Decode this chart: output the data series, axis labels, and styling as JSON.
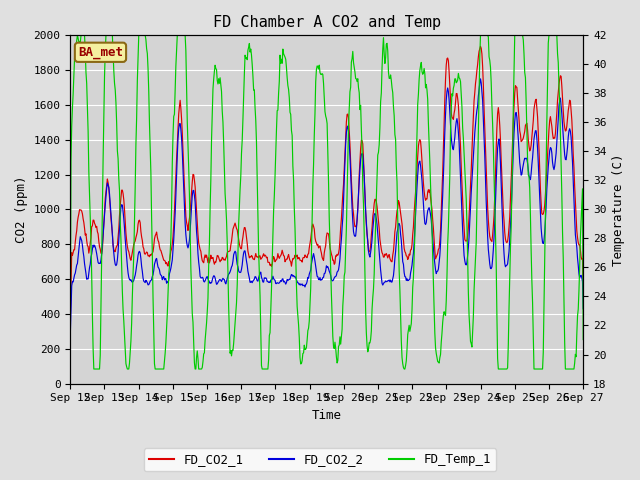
{
  "title": "FD Chamber A CO2 and Temp",
  "xlabel": "Time",
  "ylabel_left": "CO2 (ppm)",
  "ylabel_right": "Temperature (C)",
  "ylim_left": [
    0,
    2000
  ],
  "ylim_right": [
    18,
    42
  ],
  "fig_facecolor": "#e0e0e0",
  "plot_facecolor": "#d4d4d4",
  "legend_label": "BA_met",
  "legend_entries": [
    "FD_CO2_1",
    "FD_CO2_2",
    "FD_Temp_1"
  ],
  "legend_colors": [
    "#dd0000",
    "#0000dd",
    "#00cc00"
  ],
  "x_tick_labels": [
    "Sep 12",
    "Sep 13",
    "Sep 14",
    "Sep 15",
    "Sep 16",
    "Sep 17",
    "Sep 18",
    "Sep 19",
    "Sep 20",
    "Sep 21",
    "Sep 22",
    "Sep 23",
    "Sep 24",
    "Sep 25",
    "Sep 26",
    "Sep 27"
  ],
  "left_ticks": [
    0,
    200,
    400,
    600,
    800,
    1000,
    1200,
    1400,
    1600,
    1800,
    2000
  ],
  "right_ticks": [
    18,
    20,
    22,
    24,
    26,
    28,
    30,
    32,
    34,
    36,
    38,
    40,
    42
  ],
  "font_family": "monospace",
  "title_fontsize": 11,
  "label_fontsize": 9,
  "tick_fontsize": 8
}
